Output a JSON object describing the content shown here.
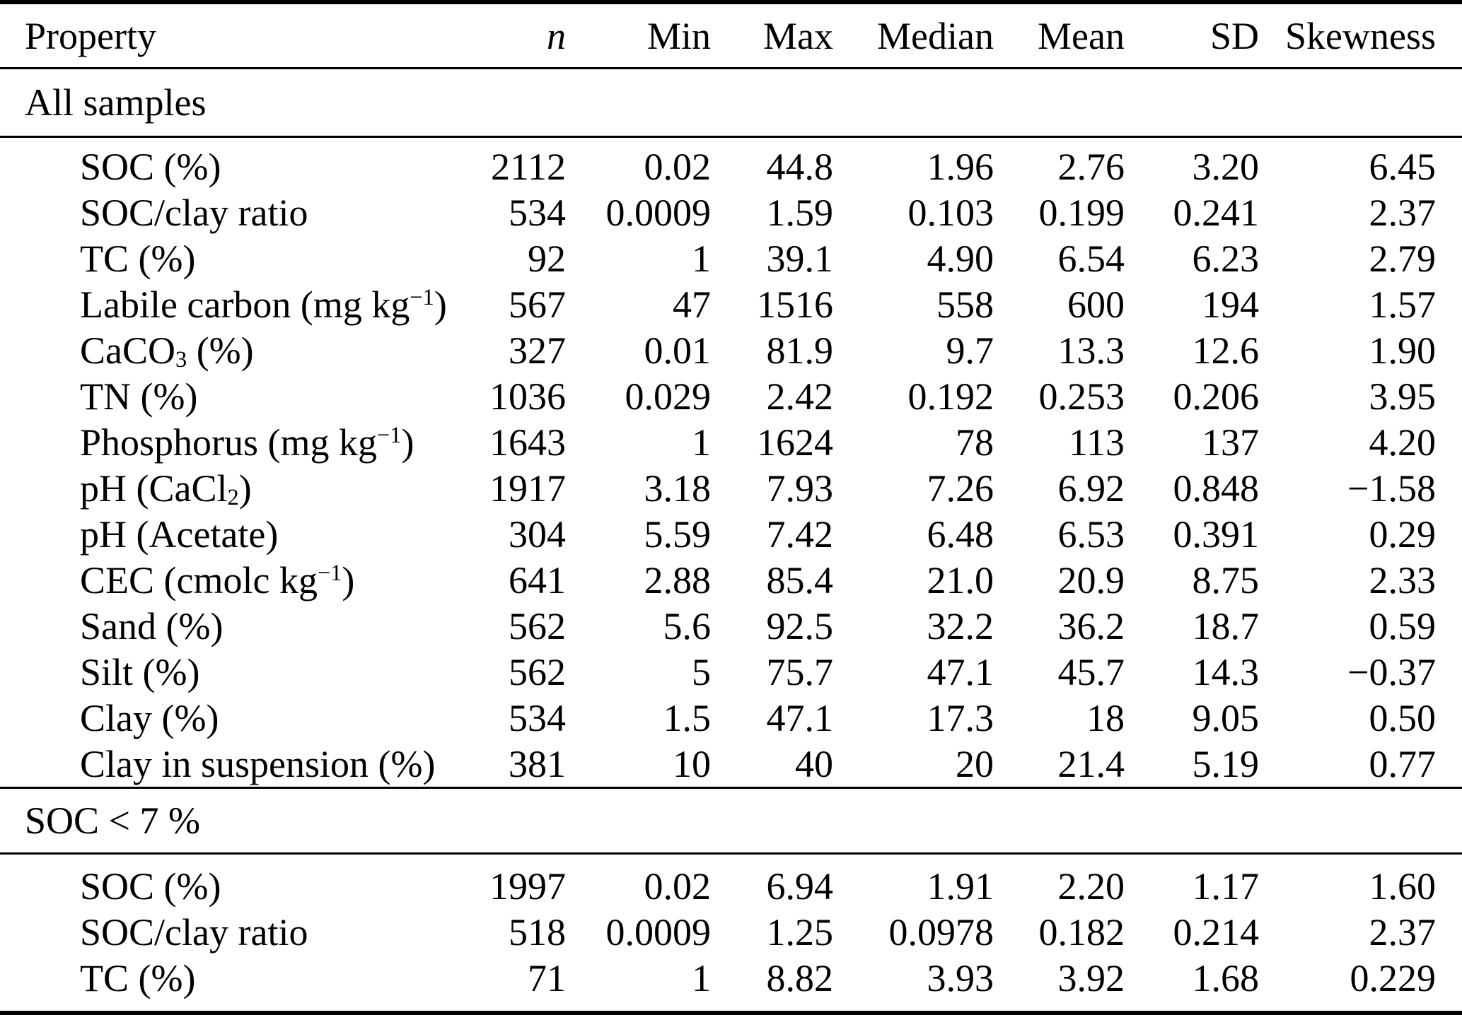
{
  "table": {
    "columns": [
      "Property",
      "n",
      "Min",
      "Max",
      "Median",
      "Mean",
      "SD",
      "Skewness"
    ],
    "sections": [
      {
        "label": "All samples",
        "rows": [
          {
            "property": "SOC (%)",
            "values": [
              "2112",
              "0.02",
              "44.8",
              "1.96",
              "2.76",
              "3.20",
              "6.45"
            ]
          },
          {
            "property": "SOC/clay ratio",
            "values": [
              "534",
              "0.0009",
              "1.59",
              "0.103",
              "0.199",
              "0.241",
              "2.37"
            ]
          },
          {
            "property": "TC (%)",
            "values": [
              "92",
              "1",
              "39.1",
              "4.90",
              "6.54",
              "6.23",
              "2.79"
            ]
          },
          {
            "property": "Labile carbon (mg kg^−1^)",
            "values": [
              "567",
              "47",
              "1516",
              "558",
              "600",
              "194",
              "1.57"
            ]
          },
          {
            "property": "CaCO~3~ (%)",
            "values": [
              "327",
              "0.01",
              "81.9",
              "9.7",
              "13.3",
              "12.6",
              "1.90"
            ]
          },
          {
            "property": "TN (%)",
            "values": [
              "1036",
              "0.029",
              "2.42",
              "0.192",
              "0.253",
              "0.206",
              "3.95"
            ]
          },
          {
            "property": "Phosphorus (mg kg^−1^)",
            "values": [
              "1643",
              "1",
              "1624",
              "78",
              "113",
              "137",
              "4.20"
            ]
          },
          {
            "property": "pH (CaCl~2~)",
            "values": [
              "1917",
              "3.18",
              "7.93",
              "7.26",
              "6.92",
              "0.848",
              "−1.58"
            ]
          },
          {
            "property": "pH (Acetate)",
            "values": [
              "304",
              "5.59",
              "7.42",
              "6.48",
              "6.53",
              "0.391",
              "0.29"
            ]
          },
          {
            "property": "CEC (cmolc kg^−1^)",
            "values": [
              "641",
              "2.88",
              "85.4",
              "21.0",
              "20.9",
              "8.75",
              "2.33"
            ]
          },
          {
            "property": "Sand (%)",
            "values": [
              "562",
              "5.6",
              "92.5",
              "32.2",
              "36.2",
              "18.7",
              "0.59"
            ]
          },
          {
            "property": "Silt (%)",
            "values": [
              "562",
              "5",
              "75.7",
              "47.1",
              "45.7",
              "14.3",
              "−0.37"
            ]
          },
          {
            "property": "Clay (%)",
            "values": [
              "534",
              "1.5",
              "47.1",
              "17.3",
              "18",
              "9.05",
              "0.50"
            ]
          },
          {
            "property": "Clay in suspension (%)",
            "values": [
              "381",
              "10",
              "40",
              "20",
              "21.4",
              "5.19",
              "0.77"
            ]
          }
        ]
      },
      {
        "label": "SOC < 7 %",
        "rows": [
          {
            "property": "SOC (%)",
            "values": [
              "1997",
              "0.02",
              "6.94",
              "1.91",
              "2.20",
              "1.17",
              "1.60"
            ]
          },
          {
            "property": "SOC/clay ratio",
            "values": [
              "518",
              "0.0009",
              "1.25",
              "0.0978",
              "0.182",
              "0.214",
              "2.37"
            ]
          },
          {
            "property": "TC (%)",
            "values": [
              "71",
              "1",
              "8.82",
              "3.93",
              "3.92",
              "1.68",
              "0.229"
            ]
          }
        ]
      }
    ]
  },
  "colors": {
    "text": "#000000",
    "background": "#ffffff",
    "rule": "#000000"
  }
}
